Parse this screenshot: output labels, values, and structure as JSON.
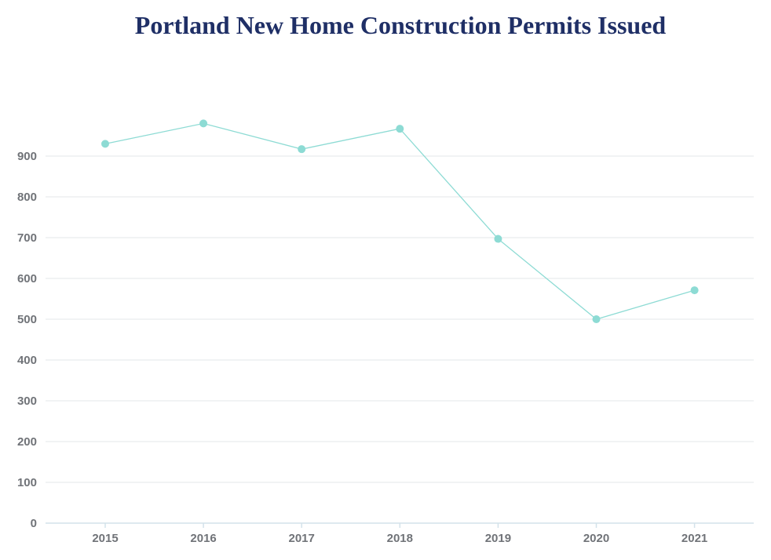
{
  "chart_data": {
    "type": "line",
    "title": "Portland New Home Construction Permits Issued",
    "xlabel": "",
    "ylabel": "",
    "categories": [
      "2015",
      "2016",
      "2017",
      "2018",
      "2019",
      "2020",
      "2021"
    ],
    "series": [
      {
        "values": [
          930,
          980,
          917,
          967,
          697,
          500,
          571
        ]
      }
    ],
    "ylim": [
      0,
      1000
    ],
    "yticks": [
      0,
      100,
      200,
      300,
      400,
      500,
      600,
      700,
      800,
      900
    ],
    "grid": true,
    "legend": "none",
    "colors": {
      "series": "#8ddbd4",
      "grid": "#e3e7ea",
      "axis": "#d3e2ea",
      "tick_label": "#707378",
      "title": "#1f2f66"
    }
  }
}
